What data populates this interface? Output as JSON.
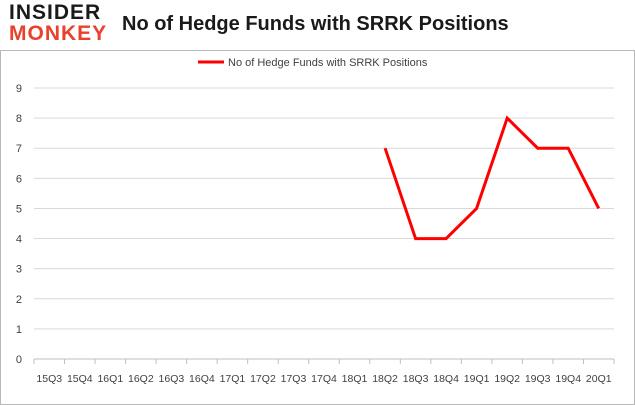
{
  "logo": {
    "line1": "INSIDER",
    "line2": "MONKEY"
  },
  "chart_data": {
    "type": "line",
    "title": "No of Hedge Funds with SRRK Positions",
    "xlabel": "",
    "ylabel": "",
    "categories": [
      "15Q3",
      "15Q4",
      "16Q1",
      "16Q2",
      "16Q3",
      "16Q4",
      "17Q1",
      "17Q2",
      "17Q3",
      "17Q4",
      "18Q1",
      "18Q2",
      "18Q3",
      "18Q4",
      "19Q1",
      "19Q2",
      "19Q3",
      "19Q4",
      "20Q1"
    ],
    "series": [
      {
        "name": "No of Hedge Funds with SRRK Positions",
        "color": "#ff0000",
        "values": [
          null,
          null,
          null,
          null,
          null,
          null,
          null,
          null,
          null,
          null,
          null,
          7,
          4,
          4,
          5,
          8,
          7,
          7,
          5
        ]
      }
    ],
    "ylim": [
      0,
      9
    ],
    "yticks": [
      0,
      1,
      2,
      3,
      4,
      5,
      6,
      7,
      8,
      9
    ],
    "grid": true,
    "legend": "top"
  }
}
